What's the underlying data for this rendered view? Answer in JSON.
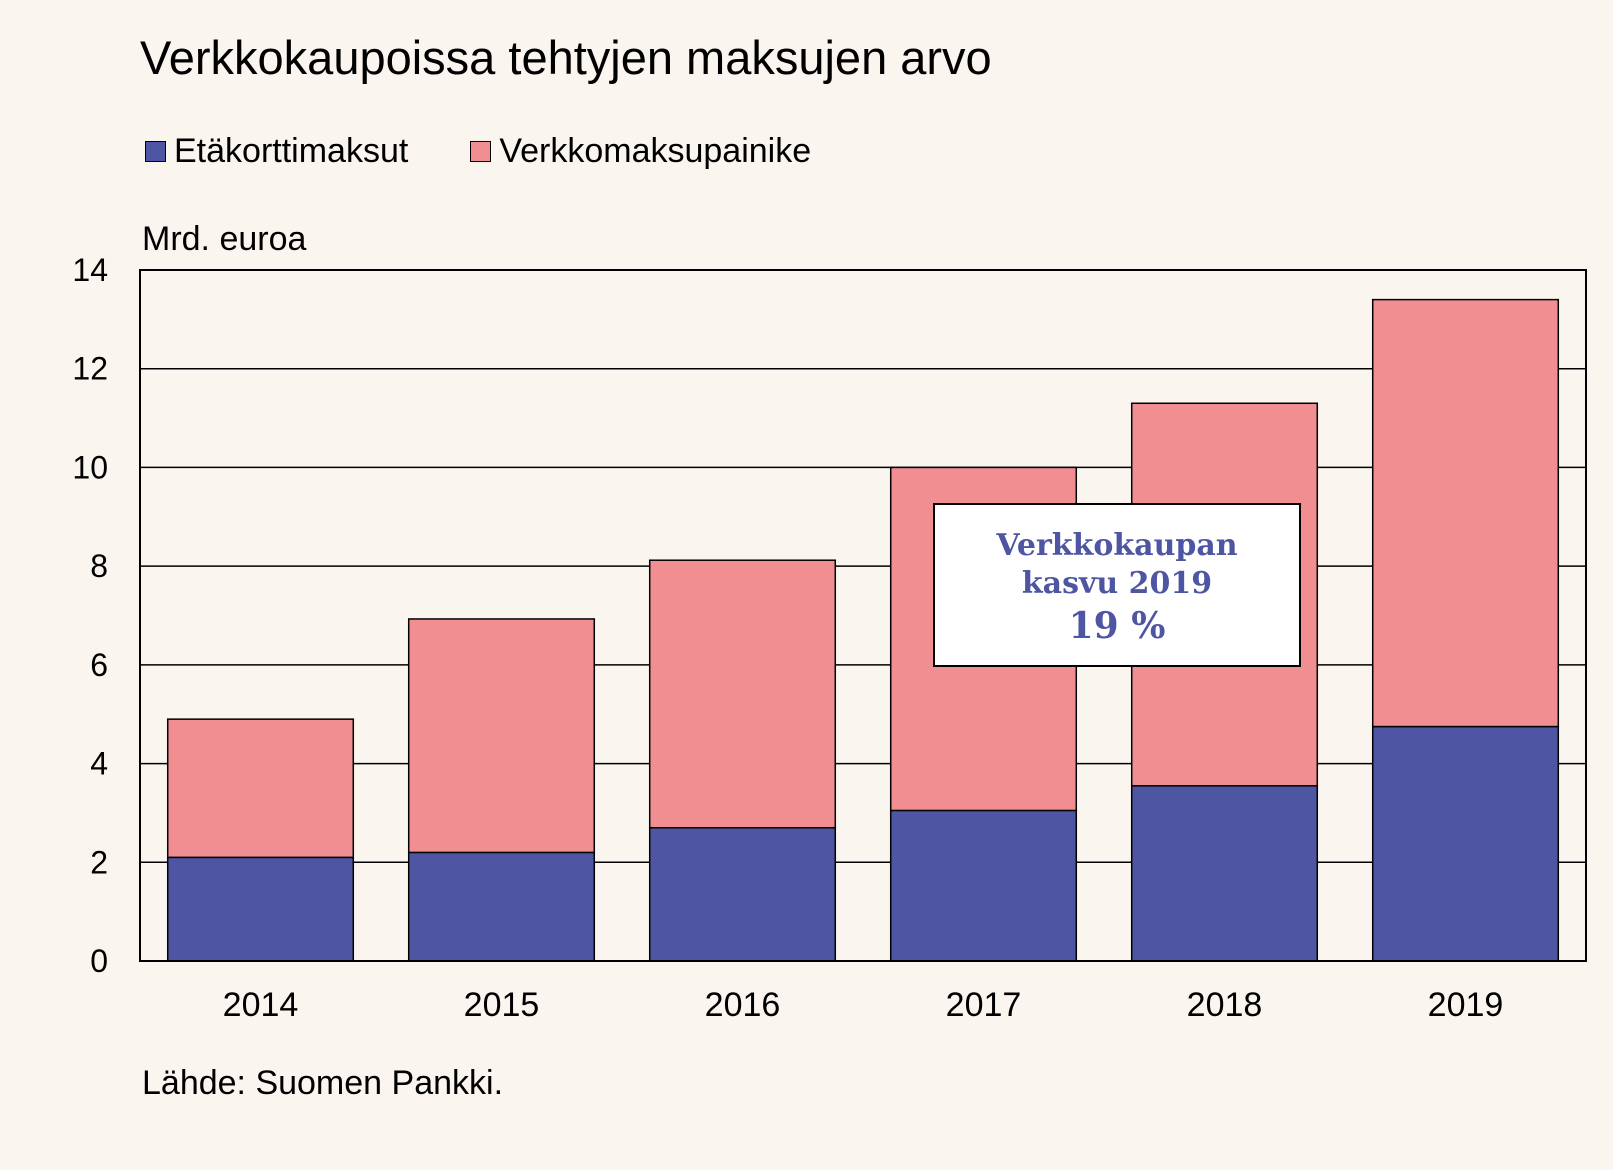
{
  "title": "Verkkokaupoissa tehtyjen maksujen arvo",
  "unit_label": "Mrd. euroa",
  "source": "Lähde: Suomen Pankki.",
  "callout": {
    "line1": "Verkkokaupan",
    "line2": "kasvu 2019",
    "line3": "19 %"
  },
  "colors": {
    "background": "#faf5ef",
    "etakortti": "#4e55a3",
    "verkkomaksu": "#f08e92",
    "callout_text": "#4e55a3"
  },
  "chart_data": {
    "type": "bar",
    "stacked": true,
    "title": "Verkkokaupoissa tehtyjen maksujen arvo",
    "ylabel": "Mrd. euroa",
    "ylim": [
      0,
      14
    ],
    "yticks": [
      0,
      2,
      4,
      6,
      8,
      10,
      12,
      14
    ],
    "grid": true,
    "legend_position": "top-left",
    "categories": [
      "2014",
      "2015",
      "2016",
      "2017",
      "2018",
      "2019"
    ],
    "series": [
      {
        "name": "Etäkorttimaksut",
        "color": "#4e55a3",
        "values": [
          2.1,
          2.2,
          2.7,
          3.05,
          3.55,
          4.75
        ]
      },
      {
        "name": "Verkkomaksupainike",
        "color": "#f08e92",
        "values": [
          2.8,
          4.73,
          5.42,
          6.95,
          7.75,
          8.65
        ]
      }
    ]
  }
}
